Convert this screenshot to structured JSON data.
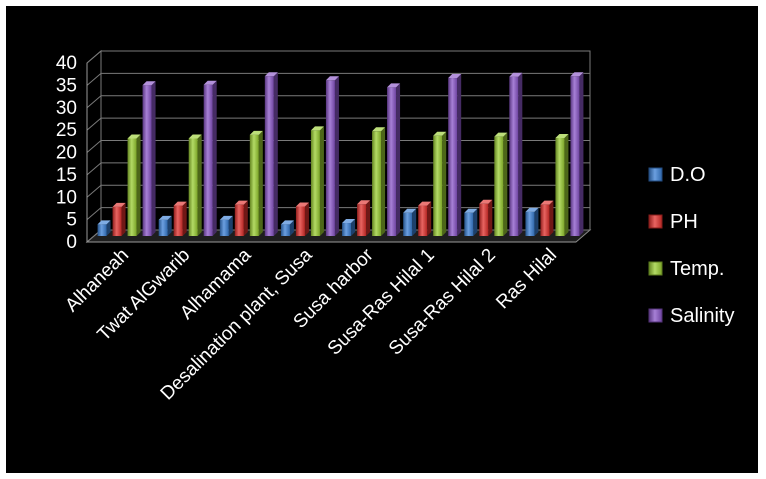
{
  "chart_data": {
    "type": "bar",
    "title": "",
    "xlabel": "",
    "ylabel": "",
    "ylim": [
      0,
      40
    ],
    "yticks": [
      0,
      5,
      10,
      15,
      20,
      25,
      30,
      35,
      40
    ],
    "grid": true,
    "legend_position": "right",
    "style": "3d-clustered-column",
    "categories": [
      "Alhaneah",
      "Twat AlGwarib",
      "Alhamama",
      "Desalination plant, Susa",
      "Susa harbor",
      "Susa-Ras Hilal 1",
      "Susa-Ras Hilal 2",
      "Ras Hilal"
    ],
    "series": [
      {
        "name": "D.O",
        "color": "#3a7fd5",
        "values": [
          2.6,
          3.6,
          3.6,
          2.6,
          2.9,
          5.2,
          5.2,
          5.4
        ]
      },
      {
        "name": "PH",
        "color": "#e0302c",
        "values": [
          6.5,
          6.8,
          7.0,
          6.6,
          7.1,
          6.8,
          7.2,
          7.0
        ]
      },
      {
        "name": "Temp.",
        "color": "#9acd32",
        "values": [
          21.8,
          21.8,
          22.6,
          23.6,
          23.4,
          22.4,
          22.2,
          21.9
        ]
      },
      {
        "name": "Salinity",
        "color": "#8a55c8",
        "values": [
          33.7,
          33.8,
          35.7,
          34.8,
          33.2,
          35.3,
          35.6,
          35.7
        ]
      }
    ]
  }
}
